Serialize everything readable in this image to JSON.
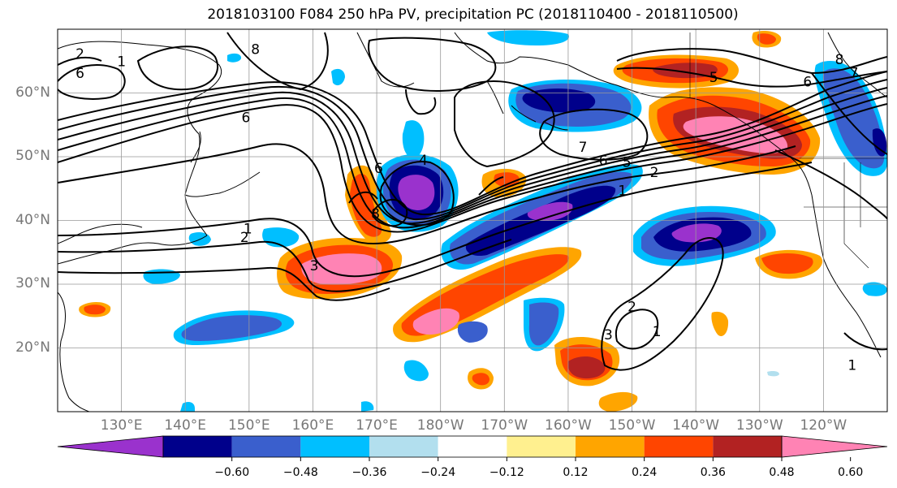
{
  "title": "2018103100 F084 250 hPa PV, precipitation PC (2018110400 - 2018110500)",
  "map": {
    "lon_range": [
      120,
      250
    ],
    "lat_range": [
      10,
      70
    ],
    "lat_ticks": [
      {
        "value": 60,
        "label": "60°N"
      },
      {
        "value": 50,
        "label": "50°N"
      },
      {
        "value": 40,
        "label": "40°N"
      },
      {
        "value": 30,
        "label": "30°N"
      },
      {
        "value": 20,
        "label": "20°N"
      }
    ],
    "lon_ticks": [
      {
        "value": 130,
        "label": "130°E"
      },
      {
        "value": 140,
        "label": "140°E"
      },
      {
        "value": 150,
        "label": "150°E"
      },
      {
        "value": 160,
        "label": "160°E"
      },
      {
        "value": 170,
        "label": "170°E"
      },
      {
        "value": 180,
        "label": "180°W"
      },
      {
        "value": 190,
        "label": "170°W"
      },
      {
        "value": 200,
        "label": "160°W"
      },
      {
        "value": 210,
        "label": "150°W"
      },
      {
        "value": 220,
        "label": "140°W"
      },
      {
        "value": 230,
        "label": "130°W"
      },
      {
        "value": 240,
        "label": "120°W"
      }
    ],
    "grid": true,
    "pv_contour_labels": [
      {
        "text": "2",
        "lon": 123.5,
        "lat": 66.2
      },
      {
        "text": "6",
        "lon": 123.5,
        "lat": 63.1
      },
      {
        "text": "1",
        "lon": 130,
        "lat": 65
      },
      {
        "text": "8",
        "lon": 151,
        "lat": 66.9
      },
      {
        "text": "6",
        "lon": 149.5,
        "lat": 56.2
      },
      {
        "text": "1",
        "lon": 149.8,
        "lat": 38.7
      },
      {
        "text": "2",
        "lon": 149.3,
        "lat": 37.4
      },
      {
        "text": "6",
        "lon": 170.3,
        "lat": 48.2
      },
      {
        "text": "8",
        "lon": 169.8,
        "lat": 41.1
      },
      {
        "text": "4",
        "lon": 177.3,
        "lat": 49.5
      },
      {
        "text": "3",
        "lon": 160.2,
        "lat": 32.9
      },
      {
        "text": "7",
        "lon": 202.3,
        "lat": 51.5
      },
      {
        "text": "6",
        "lon": 205.5,
        "lat": 49.4
      },
      {
        "text": "5",
        "lon": 209.2,
        "lat": 49.2
      },
      {
        "text": "2",
        "lon": 213.5,
        "lat": 47.6
      },
      {
        "text": "1",
        "lon": 208.5,
        "lat": 44.7
      },
      {
        "text": "5",
        "lon": 222.8,
        "lat": 62.5
      },
      {
        "text": "8",
        "lon": 242.5,
        "lat": 65.3
      },
      {
        "text": "7",
        "lon": 244.8,
        "lat": 63.2
      },
      {
        "text": "6",
        "lon": 237.5,
        "lat": 61.8
      },
      {
        "text": "2",
        "lon": 210,
        "lat": 26.5
      },
      {
        "text": "3",
        "lon": 206.3,
        "lat": 22.1
      },
      {
        "text": "1",
        "lon": 213.9,
        "lat": 22.6
      },
      {
        "text": "1",
        "lon": 244.5,
        "lat": 17.3
      }
    ]
  },
  "colorbar": {
    "colors": [
      "#9a32cd",
      "#00008b",
      "#3a5fcd",
      "#00bfff",
      "#b2dfee",
      "#ffffff",
      "#fff08f",
      "#ffa500",
      "#ff4500",
      "#b22222",
      "#ff83b4"
    ],
    "ticks": [
      "−0.60",
      "−0.48",
      "−0.36",
      "−0.24",
      "−0.12",
      "0.12",
      "0.24",
      "0.36",
      "0.48",
      "0.60"
    ],
    "extend": "both"
  }
}
